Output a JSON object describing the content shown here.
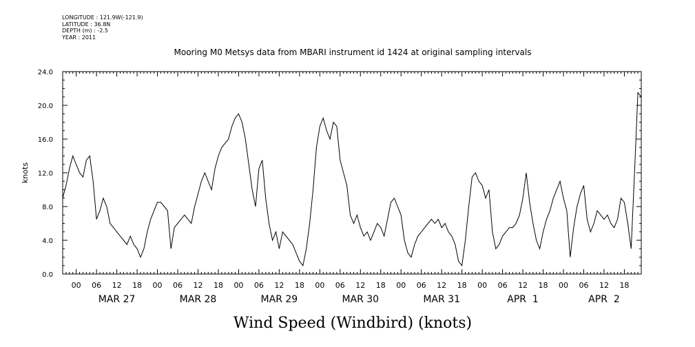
{
  "header": {
    "longitude": "LONGITUDE : 121.9W(-121.9)",
    "latitude": "LATITUDE : 36.8N",
    "depth": "DEPTH (m) : -2.5",
    "year": "YEAR : 2011"
  },
  "chart_data": {
    "type": "line",
    "title": "Mooring M0 Metsys data from MBARI instrument id 1424 at original sampling intervals",
    "bottom_title": "Wind Speed (Windbird) (knots)",
    "ylabel": "knots",
    "xlabel": "",
    "ylim": [
      0,
      24
    ],
    "xlim": [
      "2011-03-26T20:00",
      "2011-04-02T23:00"
    ],
    "y_ticks": [
      "0.0",
      "4.0",
      "8.0",
      "12.0",
      "16.0",
      "20.0",
      "24.0"
    ],
    "x_hour_labels": [
      "00",
      "06",
      "12",
      "18"
    ],
    "day_labels": [
      "MAR 27",
      "MAR 28",
      "MAR 29",
      "MAR 30",
      "MAR 31",
      "APR  1",
      "APR  2"
    ],
    "grid": false,
    "series": [
      {
        "points": [
          [
            "2011-03-26T20:00",
            9.0
          ],
          [
            "2011-03-26T21:00",
            10.5
          ],
          [
            "2011-03-26T22:00",
            12.5
          ],
          [
            "2011-03-26T23:00",
            14.0
          ],
          [
            "2011-03-27T00:00",
            13.0
          ],
          [
            "2011-03-27T01:00",
            12.0
          ],
          [
            "2011-03-27T02:00",
            11.5
          ],
          [
            "2011-03-27T03:00",
            13.5
          ],
          [
            "2011-03-27T04:00",
            14.0
          ],
          [
            "2011-03-27T05:00",
            11.0
          ],
          [
            "2011-03-27T06:00",
            6.5
          ],
          [
            "2011-03-27T07:00",
            7.5
          ],
          [
            "2011-03-27T08:00",
            9.0
          ],
          [
            "2011-03-27T09:00",
            8.0
          ],
          [
            "2011-03-27T10:00",
            6.0
          ],
          [
            "2011-03-27T11:00",
            5.5
          ],
          [
            "2011-03-27T12:00",
            5.0
          ],
          [
            "2011-03-27T13:00",
            4.5
          ],
          [
            "2011-03-27T14:00",
            4.0
          ],
          [
            "2011-03-27T15:00",
            3.5
          ],
          [
            "2011-03-27T16:00",
            4.5
          ],
          [
            "2011-03-27T17:00",
            3.5
          ],
          [
            "2011-03-27T18:00",
            3.0
          ],
          [
            "2011-03-27T19:00",
            2.0
          ],
          [
            "2011-03-27T20:00",
            3.0
          ],
          [
            "2011-03-27T21:00",
            5.0
          ],
          [
            "2011-03-27T22:00",
            6.5
          ],
          [
            "2011-03-27T23:00",
            7.5
          ],
          [
            "2011-03-28T00:00",
            8.5
          ],
          [
            "2011-03-28T01:00",
            8.5
          ],
          [
            "2011-03-28T02:00",
            8.0
          ],
          [
            "2011-03-28T03:00",
            7.5
          ],
          [
            "2011-03-28T04:00",
            3.0
          ],
          [
            "2011-03-28T05:00",
            5.5
          ],
          [
            "2011-03-28T06:00",
            6.0
          ],
          [
            "2011-03-28T07:00",
            6.5
          ],
          [
            "2011-03-28T08:00",
            7.0
          ],
          [
            "2011-03-28T09:00",
            6.5
          ],
          [
            "2011-03-28T10:00",
            6.0
          ],
          [
            "2011-03-28T11:00",
            8.0
          ],
          [
            "2011-03-28T12:00",
            9.5
          ],
          [
            "2011-03-28T13:00",
            11.0
          ],
          [
            "2011-03-28T14:00",
            12.0
          ],
          [
            "2011-03-28T15:00",
            11.0
          ],
          [
            "2011-03-28T16:00",
            10.0
          ],
          [
            "2011-03-28T17:00",
            12.5
          ],
          [
            "2011-03-28T18:00",
            14.0
          ],
          [
            "2011-03-28T19:00",
            15.0
          ],
          [
            "2011-03-28T20:00",
            15.5
          ],
          [
            "2011-03-28T21:00",
            16.0
          ],
          [
            "2011-03-28T22:00",
            17.5
          ],
          [
            "2011-03-28T23:00",
            18.5
          ],
          [
            "2011-03-29T00:00",
            19.0
          ],
          [
            "2011-03-29T01:00",
            18.0
          ],
          [
            "2011-03-29T02:00",
            16.0
          ],
          [
            "2011-03-29T03:00",
            13.0
          ],
          [
            "2011-03-29T04:00",
            10.0
          ],
          [
            "2011-03-29T05:00",
            8.0
          ],
          [
            "2011-03-29T06:00",
            12.5
          ],
          [
            "2011-03-29T07:00",
            13.5
          ],
          [
            "2011-03-29T08:00",
            9.0
          ],
          [
            "2011-03-29T09:00",
            6.0
          ],
          [
            "2011-03-29T10:00",
            4.0
          ],
          [
            "2011-03-29T11:00",
            5.0
          ],
          [
            "2011-03-29T12:00",
            3.0
          ],
          [
            "2011-03-29T13:00",
            5.0
          ],
          [
            "2011-03-29T14:00",
            4.5
          ],
          [
            "2011-03-29T15:00",
            4.0
          ],
          [
            "2011-03-29T16:00",
            3.5
          ],
          [
            "2011-03-29T17:00",
            2.5
          ],
          [
            "2011-03-29T18:00",
            1.5
          ],
          [
            "2011-03-29T19:00",
            1.0
          ],
          [
            "2011-03-29T20:00",
            3.0
          ],
          [
            "2011-03-29T21:00",
            6.0
          ],
          [
            "2011-03-29T22:00",
            10.0
          ],
          [
            "2011-03-29T23:00",
            15.0
          ],
          [
            "2011-03-30T00:00",
            17.5
          ],
          [
            "2011-03-30T01:00",
            18.5
          ],
          [
            "2011-03-30T02:00",
            17.0
          ],
          [
            "2011-03-30T03:00",
            16.0
          ],
          [
            "2011-03-30T04:00",
            18.0
          ],
          [
            "2011-03-30T05:00",
            17.5
          ],
          [
            "2011-03-30T06:00",
            13.5
          ],
          [
            "2011-03-30T07:00",
            12.0
          ],
          [
            "2011-03-30T08:00",
            10.5
          ],
          [
            "2011-03-30T09:00",
            7.0
          ],
          [
            "2011-03-30T10:00",
            6.0
          ],
          [
            "2011-03-30T11:00",
            7.0
          ],
          [
            "2011-03-30T12:00",
            5.5
          ],
          [
            "2011-03-30T13:00",
            4.5
          ],
          [
            "2011-03-30T14:00",
            5.0
          ],
          [
            "2011-03-30T15:00",
            4.0
          ],
          [
            "2011-03-30T16:00",
            5.0
          ],
          [
            "2011-03-30T17:00",
            6.0
          ],
          [
            "2011-03-30T18:00",
            5.5
          ],
          [
            "2011-03-30T19:00",
            4.5
          ],
          [
            "2011-03-30T20:00",
            6.5
          ],
          [
            "2011-03-30T21:00",
            8.5
          ],
          [
            "2011-03-30T22:00",
            9.0
          ],
          [
            "2011-03-30T23:00",
            8.0
          ],
          [
            "2011-03-31T00:00",
            7.0
          ],
          [
            "2011-03-31T01:00",
            4.0
          ],
          [
            "2011-03-31T02:00",
            2.5
          ],
          [
            "2011-03-31T03:00",
            2.0
          ],
          [
            "2011-03-31T04:00",
            3.5
          ],
          [
            "2011-03-31T05:00",
            4.5
          ],
          [
            "2011-03-31T06:00",
            5.0
          ],
          [
            "2011-03-31T07:00",
            5.5
          ],
          [
            "2011-03-31T08:00",
            6.0
          ],
          [
            "2011-03-31T09:00",
            6.5
          ],
          [
            "2011-03-31T10:00",
            6.0
          ],
          [
            "2011-03-31T11:00",
            6.5
          ],
          [
            "2011-03-31T12:00",
            5.5
          ],
          [
            "2011-03-31T13:00",
            6.0
          ],
          [
            "2011-03-31T14:00",
            5.0
          ],
          [
            "2011-03-31T15:00",
            4.5
          ],
          [
            "2011-03-31T16:00",
            3.5
          ],
          [
            "2011-03-31T17:00",
            1.5
          ],
          [
            "2011-03-31T18:00",
            1.0
          ],
          [
            "2011-03-31T19:00",
            4.0
          ],
          [
            "2011-03-31T20:00",
            8.0
          ],
          [
            "2011-03-31T21:00",
            11.5
          ],
          [
            "2011-03-31T22:00",
            12.0
          ],
          [
            "2011-03-31T23:00",
            11.0
          ],
          [
            "2011-04-01T00:00",
            10.5
          ],
          [
            "2011-04-01T01:00",
            9.0
          ],
          [
            "2011-04-01T02:00",
            10.0
          ],
          [
            "2011-04-01T03:00",
            5.0
          ],
          [
            "2011-04-01T04:00",
            3.0
          ],
          [
            "2011-04-01T05:00",
            3.5
          ],
          [
            "2011-04-01T06:00",
            4.5
          ],
          [
            "2011-04-01T07:00",
            5.0
          ],
          [
            "2011-04-01T08:00",
            5.5
          ],
          [
            "2011-04-01T09:00",
            5.5
          ],
          [
            "2011-04-01T10:00",
            6.0
          ],
          [
            "2011-04-01T11:00",
            7.0
          ],
          [
            "2011-04-01T12:00",
            9.0
          ],
          [
            "2011-04-01T13:00",
            12.0
          ],
          [
            "2011-04-01T14:00",
            8.5
          ],
          [
            "2011-04-01T15:00",
            6.0
          ],
          [
            "2011-04-01T16:00",
            4.0
          ],
          [
            "2011-04-01T17:00",
            3.0
          ],
          [
            "2011-04-01T18:00",
            5.0
          ],
          [
            "2011-04-01T19:00",
            6.5
          ],
          [
            "2011-04-01T20:00",
            7.5
          ],
          [
            "2011-04-01T21:00",
            9.0
          ],
          [
            "2011-04-01T22:00",
            10.0
          ],
          [
            "2011-04-01T23:00",
            11.0
          ],
          [
            "2011-04-02T00:00",
            9.0
          ],
          [
            "2011-04-02T01:00",
            7.5
          ],
          [
            "2011-04-02T02:00",
            2.0
          ],
          [
            "2011-04-02T03:00",
            5.5
          ],
          [
            "2011-04-02T04:00",
            8.0
          ],
          [
            "2011-04-02T05:00",
            9.5
          ],
          [
            "2011-04-02T06:00",
            10.5
          ],
          [
            "2011-04-02T07:00",
            6.5
          ],
          [
            "2011-04-02T08:00",
            5.0
          ],
          [
            "2011-04-02T09:00",
            6.0
          ],
          [
            "2011-04-02T10:00",
            7.5
          ],
          [
            "2011-04-02T11:00",
            7.0
          ],
          [
            "2011-04-02T12:00",
            6.5
          ],
          [
            "2011-04-02T13:00",
            7.0
          ],
          [
            "2011-04-02T14:00",
            6.0
          ],
          [
            "2011-04-02T15:00",
            5.5
          ],
          [
            "2011-04-02T16:00",
            6.5
          ],
          [
            "2011-04-02T17:00",
            9.0
          ],
          [
            "2011-04-02T18:00",
            8.5
          ],
          [
            "2011-04-02T19:00",
            6.0
          ],
          [
            "2011-04-02T20:00",
            3.0
          ],
          [
            "2011-04-02T21:00",
            12.0
          ],
          [
            "2011-04-02T22:00",
            21.5
          ],
          [
            "2011-04-02T23:00",
            21.0
          ]
        ]
      }
    ]
  }
}
